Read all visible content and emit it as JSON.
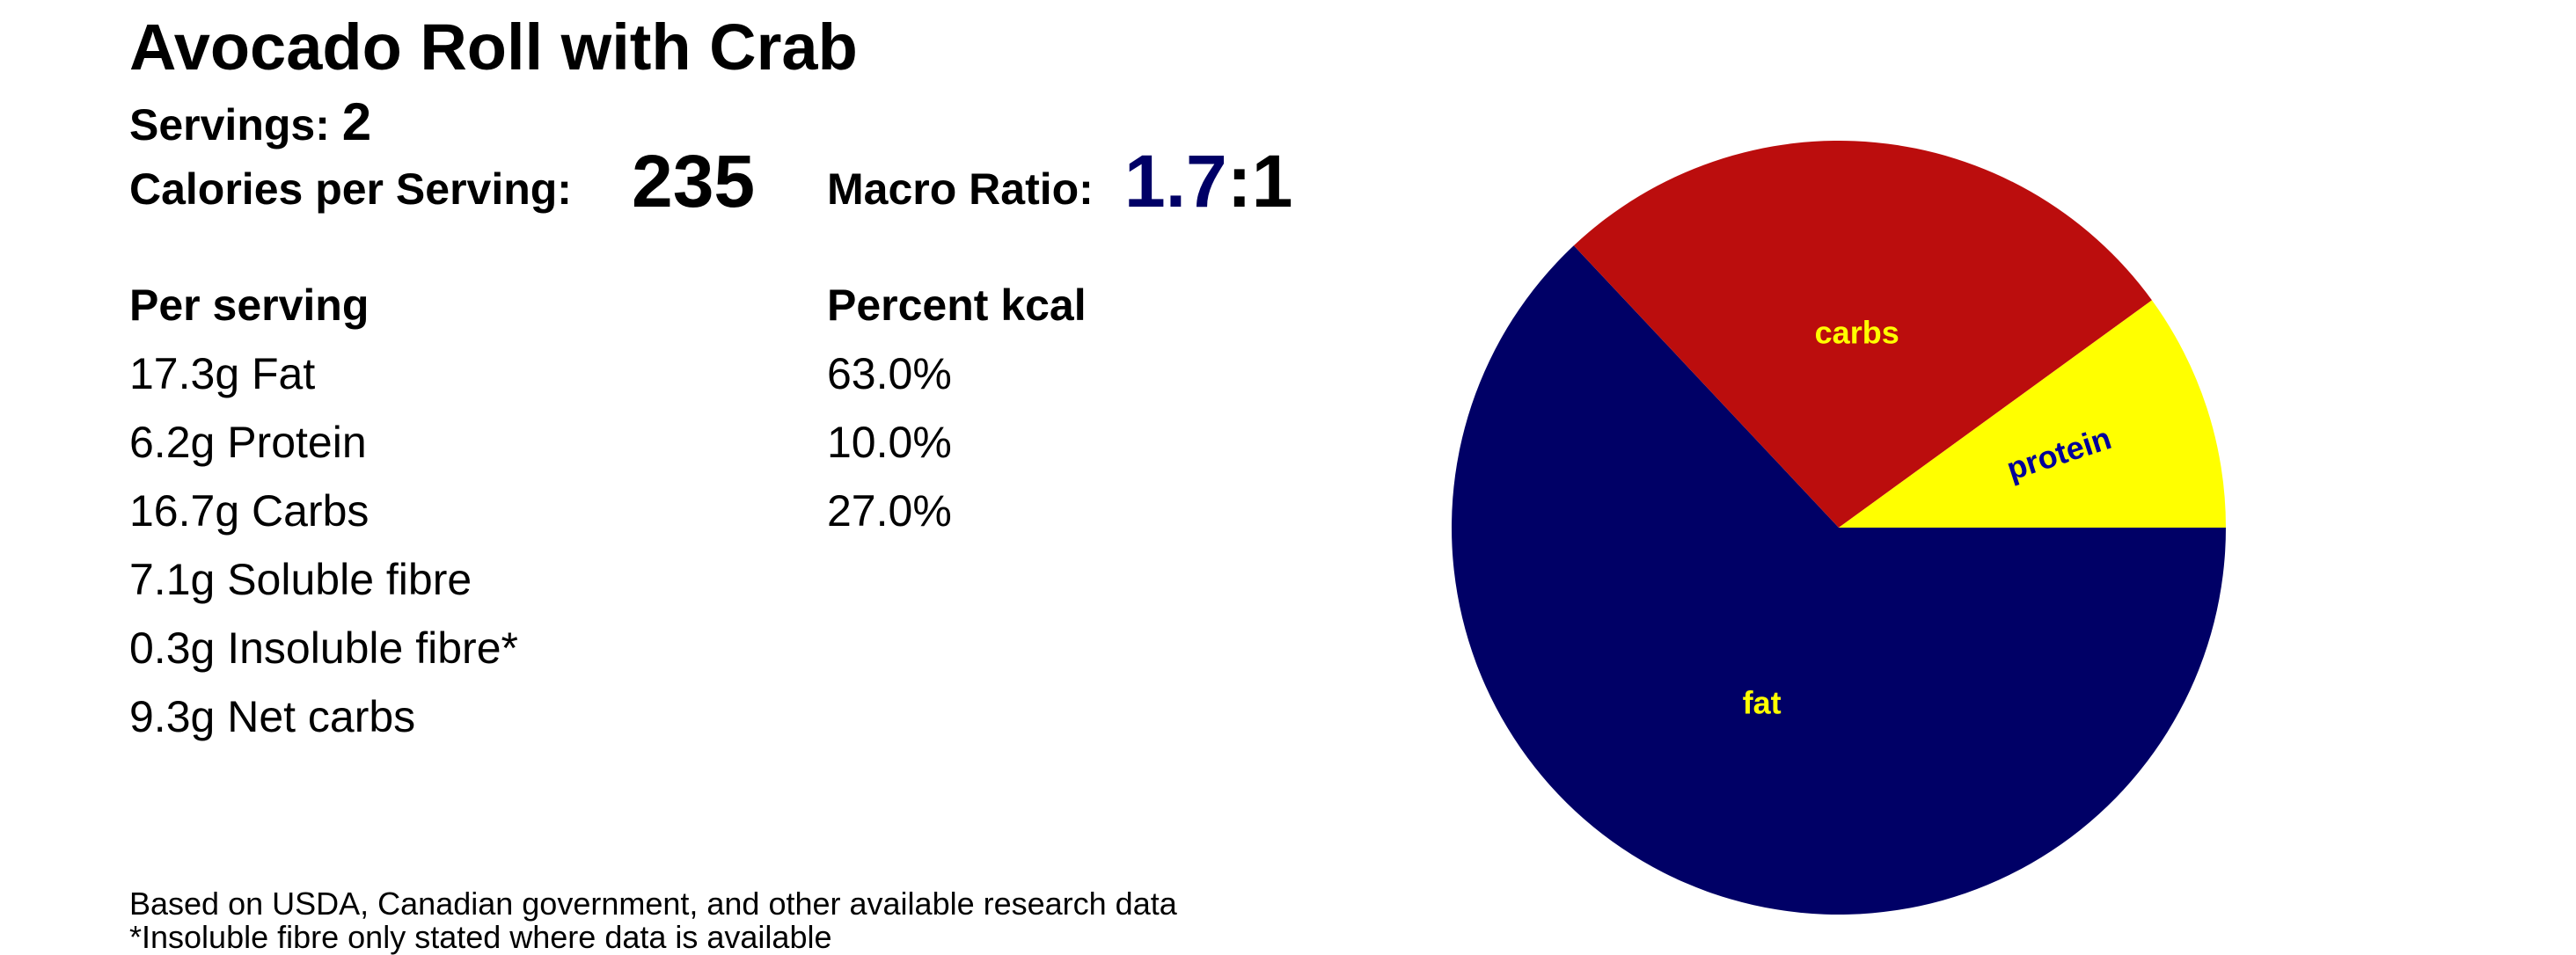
{
  "recipe": {
    "title": "Avocado Roll with Crab",
    "servings_label": "Servings:",
    "servings_value": "2",
    "calories_label": "Calories per Serving:",
    "calories_value": "235",
    "ratio_label": "Macro Ratio:",
    "ratio_value": "1.7",
    "ratio_suffix": ":1"
  },
  "table": {
    "left_header": "Per serving",
    "right_header": "Percent kcal",
    "left_rows": [
      "17.3g Fat",
      "6.2g Protein",
      "16.7g Carbs",
      "7.1g Soluble fibre",
      "0.3g Insoluble fibre*",
      "9.3g Net carbs"
    ],
    "right_rows": [
      "63.0%",
      "10.0%",
      "27.0%"
    ]
  },
  "footnotes": [
    "Based on USDA, Canadian government, and other available research data",
    "*Insoluble fibre only stated where data is available"
  ],
  "chart_data": {
    "type": "pie",
    "slices": [
      {
        "label": "fat",
        "value": 63.0,
        "color": "#000066",
        "label_color": "#ffff00"
      },
      {
        "label": "carbs",
        "value": 27.0,
        "color": "#bb0d0d",
        "label_color": "#ffff00"
      },
      {
        "label": "protein",
        "value": 10.0,
        "color": "#ffff00",
        "label_color": "#000099"
      }
    ],
    "start_angle_deg": 0,
    "direction": "clockwise"
  }
}
